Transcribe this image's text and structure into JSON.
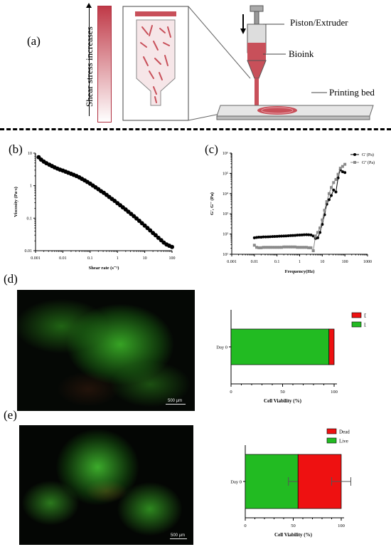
{
  "panel_labels": {
    "a": "(a)",
    "b": "(b)",
    "c": "(c)",
    "d": "(d)",
    "e": "(e)"
  },
  "schematic": {
    "shear_label": "Shear stress increases",
    "piston_label": "Piston/Extruder",
    "bioink_label": "Bioink",
    "bed_label": "Printing bed",
    "colors": {
      "bioink": "#c8505a",
      "bar_top": "#c03a48",
      "bar_bottom": "#ffffff"
    }
  },
  "micrographs": {
    "d": {
      "scale_text": "500 µm"
    },
    "e": {
      "scale_text": "500 µm"
    }
  },
  "chart_data": [
    {
      "id": "b",
      "type": "scatter",
      "xlabel": "Shear rate (s⁻¹)",
      "ylabel": "Viscosity (Pa·s)",
      "xscale": "log",
      "yscale": "log",
      "xlim": [
        0.001,
        100
      ],
      "ylim": [
        0.01,
        10
      ],
      "xticks": [
        "0.001",
        "0.01",
        "0.1",
        "1",
        "10",
        "100"
      ],
      "yticks": [
        "0.01",
        "0.1",
        "1",
        "10"
      ],
      "series": [
        {
          "color": "#000000",
          "x": [
            0.0013,
            0.0016,
            0.002,
            0.0025,
            0.0032,
            0.004,
            0.005,
            0.0063,
            0.0079,
            0.01,
            0.0126,
            0.0158,
            0.02,
            0.025,
            0.0316,
            0.04,
            0.05,
            0.063,
            0.079,
            0.1,
            0.126,
            0.158,
            0.2,
            0.25,
            0.316,
            0.4,
            0.5,
            0.63,
            0.79,
            1,
            1.26,
            1.58,
            2,
            2.5,
            3.16,
            4,
            5,
            6.3,
            7.9,
            10,
            12.6,
            15.8,
            20,
            25,
            31.6,
            40,
            50,
            63,
            79,
            100
          ],
          "y": [
            7.5,
            6.3,
            5.5,
            4.9,
            4.4,
            4.0,
            3.65,
            3.35,
            3.1,
            2.9,
            2.7,
            2.5,
            2.32,
            2.15,
            1.98,
            1.8,
            1.62,
            1.45,
            1.3,
            1.15,
            1.01,
            0.89,
            0.78,
            0.68,
            0.6,
            0.52,
            0.45,
            0.39,
            0.34,
            0.29,
            0.25,
            0.215,
            0.185,
            0.158,
            0.135,
            0.115,
            0.098,
            0.083,
            0.07,
            0.059,
            0.05,
            0.042,
            0.035,
            0.03,
            0.025,
            0.021,
            0.0178,
            0.0155,
            0.0142,
            0.013
          ]
        }
      ]
    },
    {
      "id": "c",
      "type": "line",
      "xlabel": "Frequency(Hz)",
      "ylabel": "G', G'' (Pa)",
      "xscale": "log",
      "yscale": "log",
      "xlim": [
        0.001,
        1000
      ],
      "ylim": [
        10,
        1000000
      ],
      "xticks": [
        "0.001",
        "0.01",
        "0.1",
        "1",
        "10",
        "100",
        "1000"
      ],
      "yticks": [
        "10¹",
        "10²",
        "10³",
        "10⁴",
        "10⁵",
        "10⁶"
      ],
      "legend_position": "top-right",
      "series": [
        {
          "name": "G' (Pa)",
          "color": "#000000",
          "marker": "circle",
          "x": [
            0.01,
            0.0126,
            0.0158,
            0.02,
            0.025,
            0.0316,
            0.04,
            0.05,
            0.063,
            0.079,
            0.1,
            0.126,
            0.158,
            0.2,
            0.25,
            0.316,
            0.4,
            0.5,
            0.63,
            0.79,
            1,
            1.26,
            1.58,
            2,
            2.5,
            3.16,
            4,
            5,
            6.3,
            7.9,
            10,
            12.6,
            15.8,
            20,
            25,
            31.6,
            40,
            50,
            63,
            79,
            100
          ],
          "y": [
            65,
            68,
            70,
            70,
            72,
            72,
            73,
            74,
            75,
            76,
            77,
            78,
            79,
            80,
            81,
            82,
            84,
            85,
            86,
            88,
            89,
            90,
            92,
            93,
            92,
            90,
            80,
            60,
            65,
            120,
            300,
            900,
            3000,
            5000,
            8000,
            15000,
            12000,
            60000,
            150000,
            120000,
            110000
          ]
        },
        {
          "name": "G'' (Pa)",
          "color": "#8a8a8a",
          "marker": "square",
          "x": [
            0.01,
            0.0126,
            0.0158,
            0.02,
            0.025,
            0.0316,
            0.04,
            0.05,
            0.063,
            0.079,
            0.1,
            0.126,
            0.158,
            0.2,
            0.25,
            0.316,
            0.4,
            0.5,
            0.63,
            0.79,
            1,
            1.26,
            1.58,
            2,
            2.5,
            3.16,
            4,
            5,
            6.3,
            7.9,
            10,
            12.6,
            15.8,
            20,
            25,
            31.6,
            40,
            50,
            63,
            79,
            100
          ],
          "y": [
            28,
            22,
            21,
            21,
            22,
            22,
            22,
            22,
            22,
            22,
            22,
            22,
            22,
            23,
            23,
            23,
            23,
            23,
            23,
            22,
            22,
            22,
            22,
            22,
            21,
            21,
            15,
            80,
            120,
            200,
            500,
            1500,
            4000,
            10000,
            20000,
            35000,
            50000,
            90000,
            180000,
            220000,
            280000
          ]
        }
      ]
    },
    {
      "id": "d",
      "type": "bar",
      "orientation": "horizontal",
      "stacked": true,
      "categories": [
        "Day 0"
      ],
      "xlabel": "Cell Viability (%)",
      "xlim": [
        0,
        100
      ],
      "xticks": [
        "0",
        "50",
        "100"
      ],
      "legend_position": "top-right",
      "series": [
        {
          "name": "Live",
          "color": "#22bb22",
          "values": [
            95
          ]
        },
        {
          "name": "Dead",
          "color": "#ee1111",
          "values": [
            5
          ]
        }
      ]
    },
    {
      "id": "e",
      "type": "bar",
      "orientation": "horizontal",
      "stacked": true,
      "categories": [
        "Day 0"
      ],
      "xlabel": "Cell Viability (%)",
      "xlim": [
        0,
        100
      ],
      "xticks": [
        "0",
        "50",
        "100"
      ],
      "legend_position": "top-right",
      "series": [
        {
          "name": "Live",
          "color": "#22bb22",
          "values": [
            55
          ],
          "error": 10
        },
        {
          "name": "Dead",
          "color": "#ee1111",
          "values": [
            45
          ],
          "error": 10
        }
      ]
    }
  ]
}
